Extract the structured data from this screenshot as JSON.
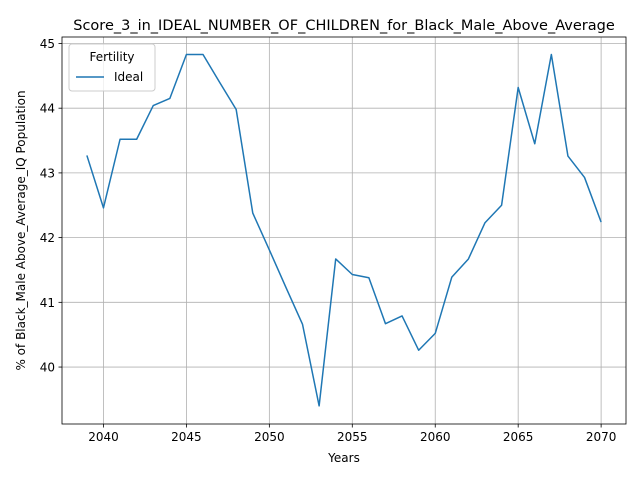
{
  "chart_data": {
    "type": "line",
    "title": "Score_3_in_IDEAL_NUMBER_OF_CHILDREN_for_Black_Male_Above_Average",
    "xlabel": "Years",
    "ylabel": "% of Black_Male Above_Average_IQ Population",
    "xlim": [
      2037.5,
      2071.5
    ],
    "ylim": [
      39.12,
      45.1
    ],
    "xticks": [
      2040,
      2045,
      2050,
      2055,
      2060,
      2065,
      2070
    ],
    "yticks": [
      40,
      41,
      42,
      43,
      44,
      45
    ],
    "grid": true,
    "legend": {
      "title": "Fertility",
      "placement": "top-left"
    },
    "series": [
      {
        "name": "Ideal",
        "color": "#1f77b4",
        "x": [
          2039,
          2040,
          2041,
          2042,
          2043,
          2044,
          2045,
          2046,
          2047,
          2048,
          2049,
          2050,
          2051,
          2052,
          2053,
          2054,
          2055,
          2056,
          2057,
          2058,
          2059,
          2060,
          2061,
          2062,
          2063,
          2064,
          2065,
          2066,
          2067,
          2068,
          2069,
          2070
        ],
        "y": [
          43.27,
          42.46,
          43.52,
          43.52,
          44.04,
          44.15,
          44.83,
          44.83,
          44.4,
          43.98,
          42.38,
          41.81,
          41.23,
          40.66,
          39.4,
          41.67,
          41.43,
          41.38,
          40.67,
          40.79,
          40.26,
          40.52,
          41.39,
          41.67,
          42.23,
          42.5,
          44.32,
          43.45,
          44.83,
          43.26,
          42.93,
          42.24
        ]
      }
    ]
  }
}
